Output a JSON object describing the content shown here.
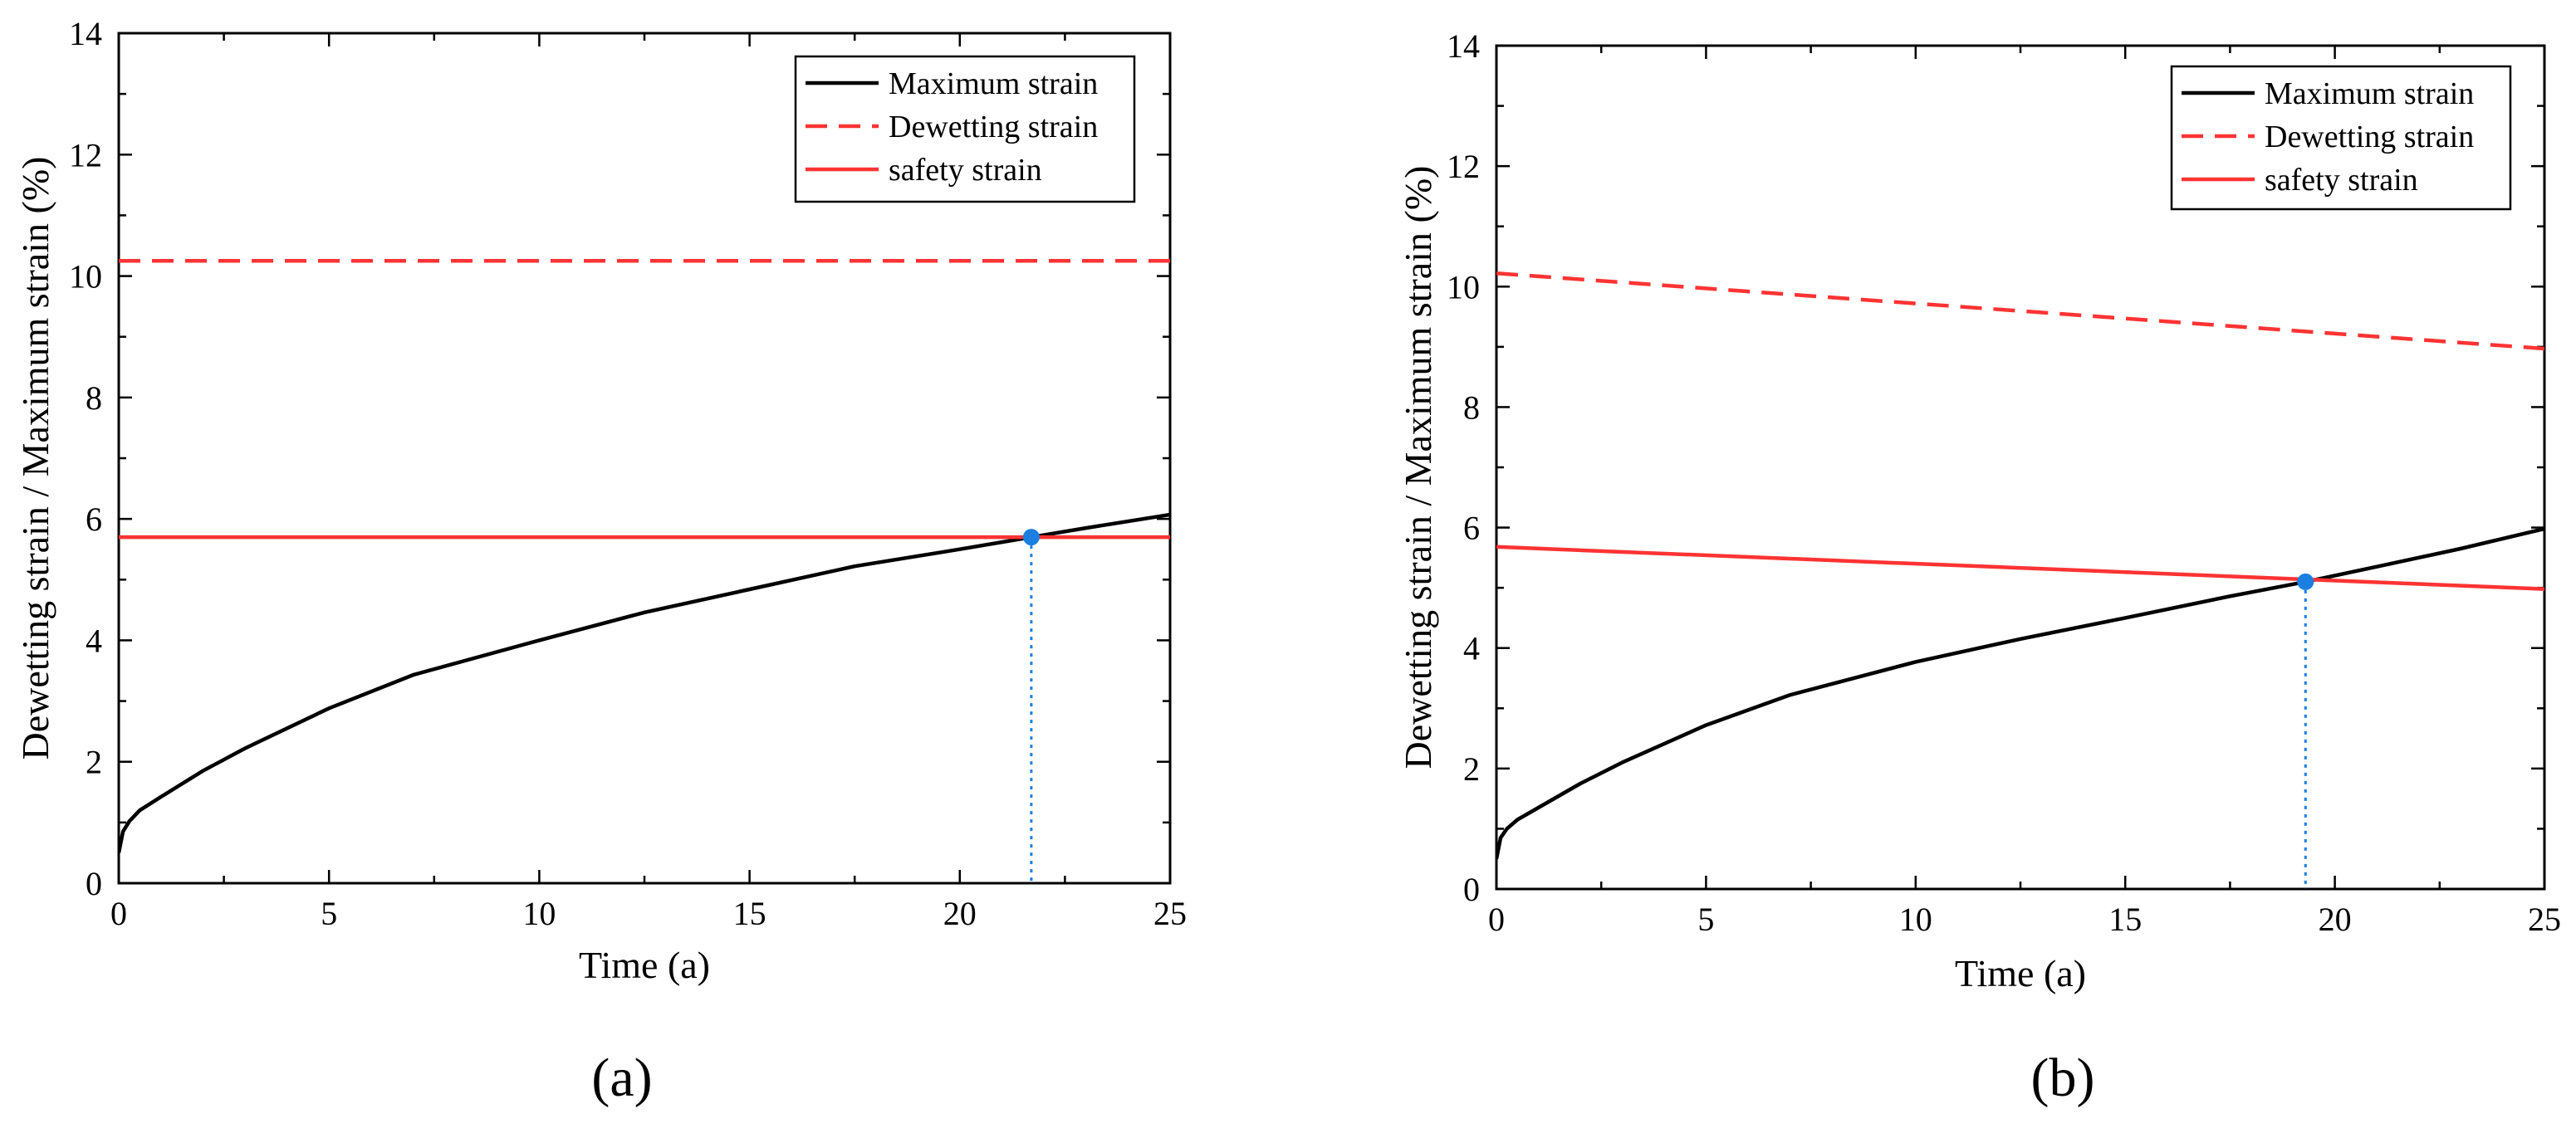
{
  "figure": {
    "panel_labels": [
      "(a)",
      "(b)"
    ]
  },
  "chart_data": [
    {
      "type": "line",
      "panel": "(a)",
      "xlabel": "Time (a)",
      "ylabel": "Dewetting strain / Maximum strain (%)",
      "xlim": [
        0,
        25
      ],
      "ylim": [
        0,
        14
      ],
      "xticks": [
        0,
        5,
        10,
        15,
        20,
        25
      ],
      "yticks": [
        0,
        2,
        4,
        6,
        8,
        10,
        12,
        14
      ],
      "legend_position": "top-right",
      "series": [
        {
          "name": "Maximum strain",
          "style": "solid",
          "color": "#000000",
          "x": [
            0,
            0.1,
            0.25,
            0.5,
            1,
            2,
            3,
            5,
            7,
            10,
            12.5,
            15,
            17.5,
            20,
            21.7,
            23,
            25
          ],
          "y": [
            0.5,
            0.85,
            1.02,
            1.2,
            1.42,
            1.85,
            2.22,
            2.88,
            3.43,
            4.0,
            4.46,
            4.84,
            5.22,
            5.5,
            5.7,
            5.85,
            6.07
          ]
        },
        {
          "name": "Dewetting strain",
          "style": "dashed",
          "color": "#ff3333",
          "x": [
            0,
            25
          ],
          "y": [
            10.25,
            10.25
          ]
        },
        {
          "name": "safety strain",
          "style": "solid",
          "color": "#ff3333",
          "x": [
            0,
            25
          ],
          "y": [
            5.7,
            5.7
          ]
        }
      ],
      "intersection": {
        "x": 21.7,
        "y": 5.7,
        "color": "#1a7fe0"
      }
    },
    {
      "type": "line",
      "panel": "(b)",
      "xlabel": "Time (a)",
      "ylabel": "Dewetting strain / Maximum strain (%)",
      "xlim": [
        0,
        25
      ],
      "ylim": [
        0,
        14
      ],
      "xticks": [
        0,
        5,
        10,
        15,
        20,
        25
      ],
      "yticks": [
        0,
        2,
        4,
        6,
        8,
        10,
        12,
        14
      ],
      "legend_position": "top-right",
      "series": [
        {
          "name": "Maximum strain",
          "style": "solid",
          "color": "#000000",
          "x": [
            0,
            0.1,
            0.25,
            0.5,
            1,
            2,
            3,
            5,
            7,
            10,
            12.5,
            15,
            17.5,
            19.3,
            21,
            23,
            25
          ],
          "y": [
            0.5,
            0.85,
            1.0,
            1.15,
            1.35,
            1.75,
            2.1,
            2.72,
            3.22,
            3.77,
            4.15,
            4.5,
            4.86,
            5.1,
            5.35,
            5.65,
            5.98
          ]
        },
        {
          "name": "Dewetting strain",
          "style": "dashed",
          "color": "#ff3333",
          "x": [
            0,
            25
          ],
          "y": [
            10.22,
            8.97
          ]
        },
        {
          "name": "safety strain",
          "style": "solid",
          "color": "#ff3333",
          "x": [
            0,
            25
          ],
          "y": [
            5.68,
            4.98
          ]
        }
      ],
      "intersection": {
        "x": 19.3,
        "y": 5.1,
        "color": "#1a7fe0"
      }
    }
  ]
}
